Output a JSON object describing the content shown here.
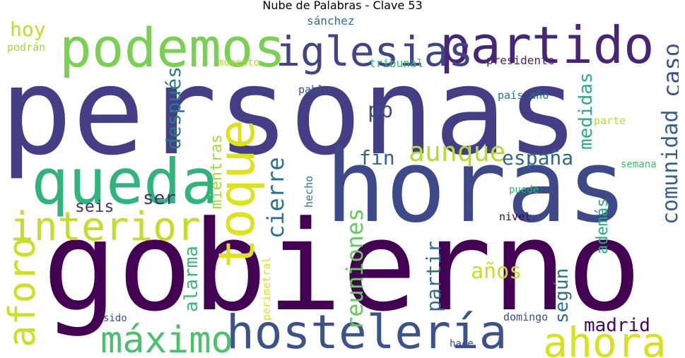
{
  "title": "Nube de Palabras - Clave 53",
  "words": [
    {
      "text": "personas",
      "color": "#433e85"
    },
    {
      "text": "gobierno",
      "color": "#440154"
    },
    {
      "text": "horas",
      "color": "#3e4989"
    },
    {
      "text": "queda",
      "color": "#2fb47c"
    },
    {
      "text": "podemos",
      "color": "#7ad151"
    },
    {
      "text": "partido",
      "color": "#482677"
    },
    {
      "text": "iglesias",
      "color": "#414487"
    },
    {
      "text": "toque",
      "color": "#dde318"
    },
    {
      "text": "interior",
      "color": "#c2df23"
    },
    {
      "text": "hostelería",
      "color": "#3b528b"
    },
    {
      "text": "máximo",
      "color": "#4ac16d"
    },
    {
      "text": "ahora",
      "color": "#d8e219"
    },
    {
      "text": "aforo",
      "color": "#cae11f"
    },
    {
      "text": "aunque",
      "color": "#b5de2b"
    },
    {
      "text": "hoy",
      "color": "#bddf26"
    },
    {
      "text": "podrán",
      "color": "#a0da39"
    },
    {
      "text": "sánchez",
      "color": "#2c728e"
    },
    {
      "text": "caso",
      "color": "#3b528b"
    },
    {
      "text": "después",
      "color": "#2a788e"
    },
    {
      "text": "medidas",
      "color": "#29af7f"
    },
    {
      "text": "pp",
      "color": "#3e4a89"
    },
    {
      "text": "comunidad",
      "color": "#355f8d"
    },
    {
      "text": "españa",
      "color": "#31688e"
    },
    {
      "text": "fin",
      "color": "#33638d"
    },
    {
      "text": "cierre",
      "color": "#2d708e"
    },
    {
      "text": "mientras",
      "color": "#a5db36"
    },
    {
      "text": "ser",
      "color": "#472c7a"
    },
    {
      "text": "seis",
      "color": "#472f7d"
    },
    {
      "text": "reuniones",
      "color": "#65cb5e"
    },
    {
      "text": "alarma",
      "color": "#3aba76"
    },
    {
      "text": "partir",
      "color": "#2e6f8e"
    },
    {
      "text": "años",
      "color": "#c8e020"
    },
    {
      "text": "según",
      "color": "#2d718e"
    },
    {
      "text": "madrid",
      "color": "#46085c"
    },
    {
      "text": "además",
      "color": "#25ac82"
    },
    {
      "text": "momento",
      "color": "#b0dd2f"
    },
    {
      "text": "tribunal",
      "color": "#35b779"
    },
    {
      "text": "presidente",
      "color": "#481f70"
    },
    {
      "text": "pablo",
      "color": "#3b528b"
    },
    {
      "text": "país año",
      "color": "#2e6e8e"
    },
    {
      "text": "parte",
      "color": "#b8de29"
    },
    {
      "text": "semana",
      "color": "#40bd72"
    },
    {
      "text": "hecho",
      "color": "#287c8e"
    },
    {
      "text": "puede",
      "color": "#2db27d"
    },
    {
      "text": "nivel",
      "color": "#440154"
    },
    {
      "text": "perimetral",
      "color": "#dde318"
    },
    {
      "text": "sido",
      "color": "#3b528b"
    },
    {
      "text": "domingo",
      "color": "#3e4a89"
    },
    {
      "text": "hace",
      "color": "#3f4788"
    }
  ]
}
